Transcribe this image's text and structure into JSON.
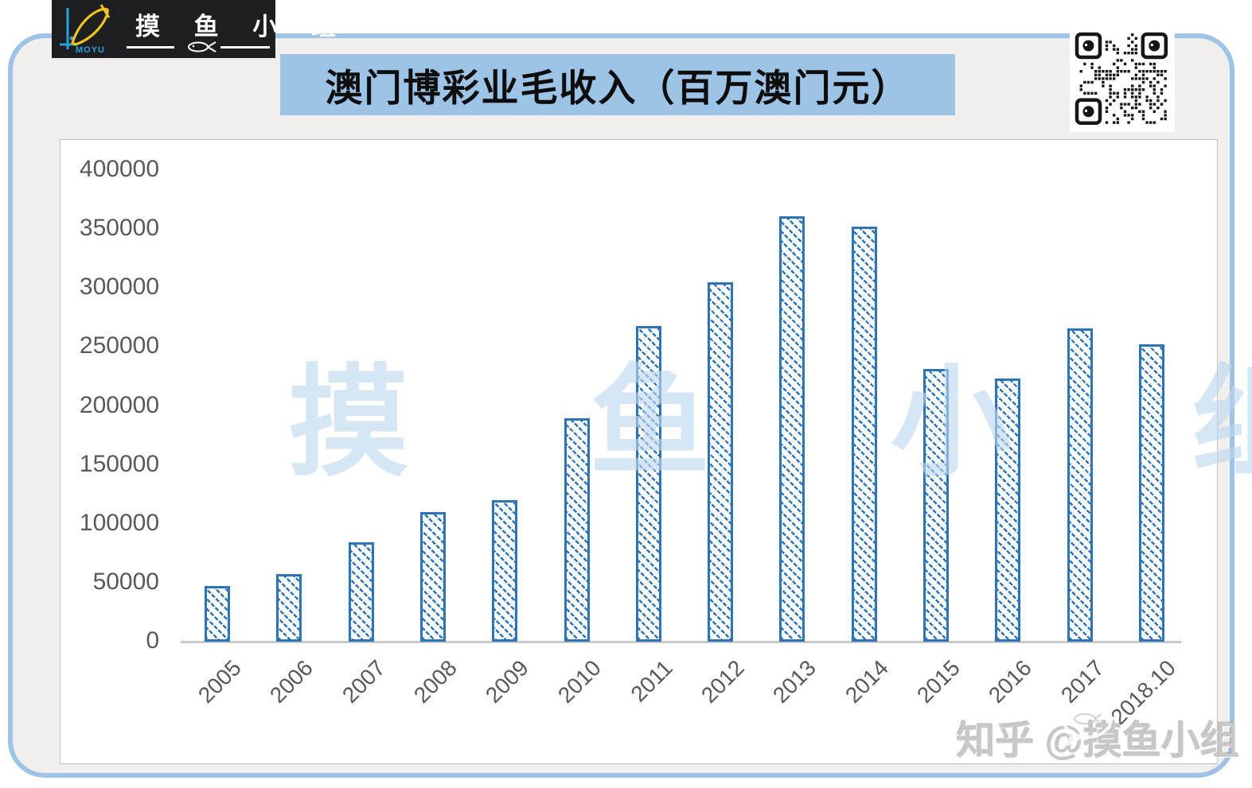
{
  "header": {
    "logo": {
      "brand_text": "摸 鱼 小 组",
      "brand_sub": "MOYU"
    },
    "title": "澳门博彩业毛收入（百万澳门元）"
  },
  "chart_data": {
    "type": "bar",
    "title": "澳门博彩业毛收入（百万澳门元）",
    "categories": [
      "2005",
      "2006",
      "2007",
      "2008",
      "2009",
      "2010",
      "2011",
      "2012",
      "2013",
      "2014",
      "2015",
      "2016",
      "2017",
      "2018.10"
    ],
    "values": [
      47000,
      57500,
      84000,
      110000,
      120000,
      189500,
      268000,
      305000,
      361000,
      352000,
      231500,
      223000,
      266000,
      252000
    ],
    "xlabel": "",
    "ylabel": "",
    "ylim": [
      0,
      400000
    ],
    "ytick_step": 50000,
    "yticks": [
      "400000",
      "350000",
      "300000",
      "250000",
      "200000",
      "150000",
      "100000",
      "50000",
      "0"
    ],
    "grid": false,
    "legend": "none",
    "bar_style": "diagonal-hatch",
    "bar_color": "#2E74B5",
    "watermark": "摸 鱼 小 组"
  },
  "footer": {
    "watermark": "知乎 @摸鱼小组"
  },
  "colors": {
    "accent_blue": "#2E74B5",
    "title_background": "#9DC3E6",
    "frame_border": "#9DC3E6",
    "frame_fill": "#F0EFEC",
    "axis_text": "#595959",
    "watermark_blue": "#BDD7EE",
    "logo_background": "#1D1E20",
    "logo_fish_yellow": "#EFC31C",
    "logo_axis_blue": "#2BA3DA"
  },
  "icons": {
    "qr_code": "qr-code",
    "fish": "fish-icon"
  }
}
